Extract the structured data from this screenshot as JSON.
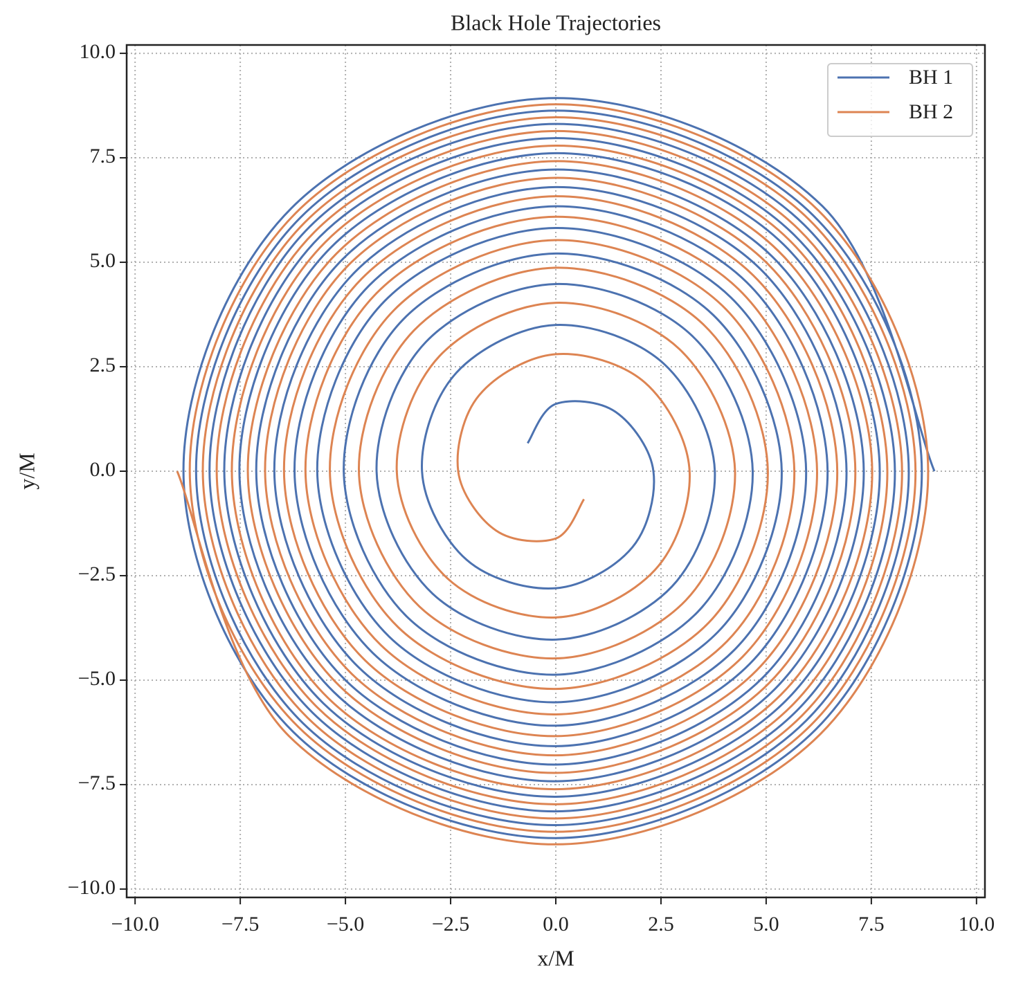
{
  "chart_data": {
    "type": "line",
    "title": "Black Hole Trajectories",
    "xlabel": "x/M",
    "ylabel": "y/M",
    "xlim": [
      -10.2,
      10.2
    ],
    "ylim": [
      -10.2,
      10.2
    ],
    "xticks": [
      {
        "value": -10,
        "label": "−10.0"
      },
      {
        "value": -7.5,
        "label": "−7.5"
      },
      {
        "value": -5,
        "label": "−5.0"
      },
      {
        "value": -2.5,
        "label": "−2.5"
      },
      {
        "value": 0,
        "label": "0.0"
      },
      2.5,
      {
        "value": 5,
        "label": "5.0"
      },
      7.5,
      {
        "value": 10,
        "label": "10.0"
      }
    ],
    "yticks": [
      {
        "value": -10,
        "label": "−10.0"
      },
      {
        "value": -7.5,
        "label": "−7.5"
      },
      {
        "value": -5,
        "label": "−5.0"
      },
      {
        "value": -2.5,
        "label": "−2.5"
      },
      {
        "value": 0,
        "label": "0.0"
      },
      2.5,
      {
        "value": 5,
        "label": "5.0"
      },
      7.5,
      {
        "value": 10,
        "label": "10.0"
      }
    ],
    "grid": true,
    "legend": "upper right",
    "series": [
      {
        "name": "BH 1",
        "color": "#4c72b0",
        "x": [
          9.0,
          6.34,
          0,
          -6.29,
          -8.85,
          -6.24,
          0,
          6.18,
          8.7,
          6.12,
          0,
          -6.07,
          -8.55,
          -6.02,
          0,
          5.96,
          8.39,
          5.9,
          0,
          -5.85,
          -8.23,
          -5.78,
          0,
          5.73,
          8.06,
          5.66,
          0,
          -5.61,
          -7.88,
          -5.54,
          0,
          5.48,
          7.7,
          5.42,
          0,
          -5.35,
          -7.52,
          -5.28,
          0,
          5.21,
          7.32,
          5.14,
          0,
          -5.07,
          -7.12,
          -5.0,
          0,
          4.93,
          6.91,
          4.85,
          0,
          -4.77,
          -6.69,
          -4.69,
          0,
          4.61,
          6.46,
          4.53,
          0,
          -4.44,
          -6.21,
          -4.35,
          0,
          4.26,
          5.95,
          4.16,
          0,
          -4.07,
          -5.67,
          -3.96,
          0,
          3.85,
          5.37,
          3.74,
          0,
          -3.63,
          -5.04,
          -3.51,
          0,
          3.37,
          4.68,
          3.24,
          0,
          -3.09,
          -4.26,
          -2.93,
          0,
          2.76,
          3.78,
          2.57,
          0,
          -2.36,
          -3.18,
          -2.12,
          0,
          1.82,
          2.32,
          1.42,
          0,
          -0.67
        ],
        "values": [
          0,
          6.34,
          8.93,
          6.29,
          0,
          -6.24,
          -8.78,
          -6.18,
          0,
          6.12,
          8.63,
          6.07,
          0,
          -6.02,
          -8.47,
          -5.96,
          0,
          5.9,
          8.31,
          5.85,
          0,
          -5.78,
          -8.14,
          -5.73,
          0,
          5.66,
          7.97,
          5.61,
          0,
          -5.54,
          -7.79,
          -5.48,
          0,
          5.42,
          7.61,
          5.35,
          0,
          -5.28,
          -7.42,
          -5.21,
          0,
          5.14,
          7.22,
          5.07,
          0,
          -5.0,
          -7.02,
          -4.93,
          0,
          4.85,
          6.8,
          4.77,
          0,
          -4.69,
          -6.58,
          -4.61,
          0,
          4.53,
          6.34,
          4.44,
          0,
          -4.35,
          -6.09,
          -4.26,
          0,
          4.16,
          5.82,
          4.07,
          0,
          -3.96,
          -5.53,
          -3.85,
          0,
          3.74,
          5.21,
          3.63,
          0,
          -3.51,
          -4.87,
          -3.37,
          0,
          3.24,
          4.48,
          3.09,
          0,
          -2.93,
          -4.03,
          -2.76,
          0,
          2.57,
          3.5,
          2.36,
          0,
          -2.12,
          -2.8,
          -1.82,
          0,
          1.42,
          1.61,
          0.67
        ]
      },
      {
        "name": "BH 2",
        "color": "#dd8452",
        "x": [
          -9.0,
          -6.34,
          0,
          6.29,
          8.85,
          6.24,
          0,
          -6.18,
          -8.7,
          -6.12,
          0,
          6.07,
          8.55,
          6.02,
          0,
          -5.96,
          -8.39,
          -5.9,
          0,
          5.85,
          8.23,
          5.78,
          0,
          -5.73,
          -8.06,
          -5.66,
          0,
          5.61,
          7.88,
          5.54,
          0,
          -5.48,
          -7.7,
          -5.42,
          0,
          5.35,
          7.52,
          5.28,
          0,
          -5.21,
          -7.32,
          -5.14,
          0,
          5.07,
          7.12,
          5.0,
          0,
          -4.93,
          -6.91,
          -4.85,
          0,
          4.77,
          6.69,
          4.69,
          0,
          -4.61,
          -6.46,
          -4.53,
          0,
          4.44,
          6.21,
          4.35,
          0,
          -4.26,
          -5.95,
          -4.16,
          0,
          4.07,
          5.67,
          3.96,
          0,
          -3.85,
          -5.37,
          -3.74,
          0,
          3.63,
          5.04,
          3.51,
          0,
          -3.37,
          -4.68,
          -3.24,
          0,
          3.09,
          4.26,
          2.93,
          0,
          -2.76,
          -3.78,
          -2.57,
          0,
          2.36,
          3.18,
          2.12,
          0,
          -1.82,
          -2.32,
          -1.42,
          0,
          0.67
        ],
        "values": [
          0,
          -6.34,
          -8.93,
          -6.29,
          0,
          6.24,
          8.78,
          6.18,
          0,
          -6.12,
          -8.63,
          -6.07,
          0,
          6.02,
          8.47,
          5.96,
          0,
          -5.9,
          -8.31,
          -5.85,
          0,
          5.78,
          8.14,
          5.73,
          0,
          -5.66,
          -7.97,
          -5.61,
          0,
          5.54,
          7.79,
          5.48,
          0,
          -5.42,
          -7.61,
          -5.35,
          0,
          5.28,
          7.42,
          5.21,
          0,
          -5.14,
          -7.22,
          -5.07,
          0,
          5.0,
          7.02,
          4.93,
          0,
          -4.85,
          -6.8,
          -4.77,
          0,
          4.69,
          6.58,
          4.61,
          0,
          -4.53,
          -6.34,
          -4.44,
          0,
          4.35,
          6.09,
          4.26,
          0,
          -4.16,
          -5.82,
          -4.07,
          0,
          3.96,
          5.53,
          3.85,
          0,
          -3.74,
          -5.21,
          -3.63,
          0,
          3.51,
          4.87,
          3.37,
          0,
          -3.24,
          -4.48,
          -3.09,
          0,
          2.93,
          4.03,
          2.76,
          0,
          -2.57,
          -3.5,
          -2.36,
          0,
          2.12,
          2.8,
          1.82,
          0,
          -1.42,
          -1.61,
          -0.67
        ]
      }
    ]
  }
}
